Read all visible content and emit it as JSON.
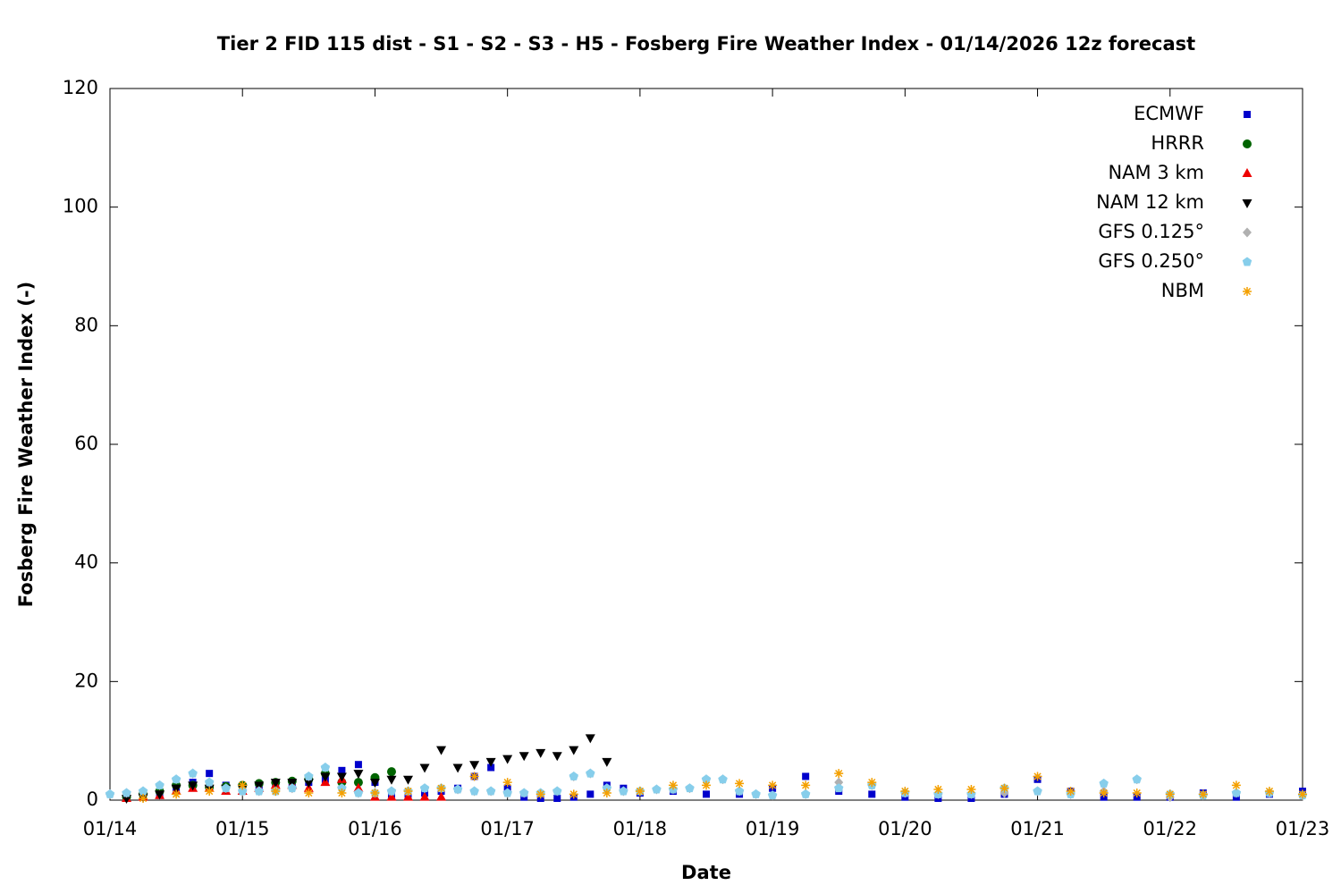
{
  "chart_data": {
    "type": "scatter",
    "title": "Tier 2 FID 115 dist - S1 - S2 - S3 - H5 - Fosberg Fire Weather Index - 01/14/2026 12z forecast",
    "xlabel": "Date",
    "ylabel": "Fosberg Fire Weather Index (-)",
    "xlim": [
      0,
      9
    ],
    "ylim": [
      0,
      120
    ],
    "xticks": [
      {
        "value": 0,
        "label": "01/14"
      },
      {
        "value": 1,
        "label": "01/15"
      },
      {
        "value": 2,
        "label": "01/16"
      },
      {
        "value": 3,
        "label": "01/17"
      },
      {
        "value": 4,
        "label": "01/18"
      },
      {
        "value": 5,
        "label": "01/19"
      },
      {
        "value": 6,
        "label": "01/20"
      },
      {
        "value": 7,
        "label": "01/21"
      },
      {
        "value": 8,
        "label": "01/22"
      },
      {
        "value": 9,
        "label": "01/23"
      }
    ],
    "yticks": [
      0,
      20,
      40,
      60,
      80,
      100,
      120
    ],
    "legend": "top-right",
    "series": [
      {
        "name": "ECMWF",
        "color": "#0000cc",
        "marker": "square",
        "x": [
          0.125,
          0.25,
          0.375,
          0.5,
          0.625,
          0.75,
          0.875,
          1.0,
          1.125,
          1.25,
          1.375,
          1.5,
          1.625,
          1.75,
          1.875,
          2.0,
          2.125,
          2.25,
          2.375,
          2.5,
          2.625,
          2.75,
          2.875,
          3.0,
          3.125,
          3.25,
          3.375,
          3.5,
          3.625,
          3.75,
          3.875,
          4.0,
          4.25,
          4.5,
          4.75,
          5.0,
          5.25,
          5.5,
          5.75,
          6.0,
          6.25,
          6.5,
          6.75,
          7.0,
          7.25,
          7.5,
          7.75,
          8.0,
          8.25,
          8.5,
          8.75,
          9.0
        ],
        "values": [
          0.3,
          0.5,
          0.8,
          1.5,
          3,
          4.5,
          2.5,
          2,
          1.8,
          2,
          2.5,
          3,
          3.5,
          5,
          6,
          3,
          1,
          1,
          1.2,
          1.5,
          2,
          4,
          5.5,
          2,
          0.5,
          0.3,
          0.3,
          0.5,
          1,
          2.5,
          2,
          1.2,
          1.5,
          1,
          1,
          2,
          4,
          1.5,
          1,
          0.5,
          0.3,
          0.3,
          1,
          3.5,
          1.5,
          0.5,
          0.5,
          0.5,
          1.2,
          0.5,
          1,
          1.5
        ]
      },
      {
        "name": "HRRR",
        "color": "#006400",
        "marker": "circle",
        "x": [
          0.125,
          0.25,
          0.375,
          0.5,
          0.625,
          0.75,
          0.875,
          1.0,
          1.125,
          1.25,
          1.375,
          1.5,
          1.625,
          1.75,
          1.875,
          2.0,
          2.125
        ],
        "values": [
          0.5,
          1,
          1.5,
          2.5,
          2.5,
          2.2,
          2.3,
          2.5,
          2.8,
          3,
          3.2,
          3.5,
          4.5,
          3,
          3,
          3.8,
          4.8
        ]
      },
      {
        "name": "NAM 3 km",
        "color": "#ee0000",
        "marker": "triangle-up",
        "x": [
          0.125,
          0.25,
          0.375,
          0.5,
          0.625,
          0.75,
          0.875,
          1.0,
          1.125,
          1.25,
          1.375,
          1.5,
          1.625,
          1.75,
          1.875,
          2.0,
          2.125,
          2.25,
          2.375,
          2.5
        ],
        "values": [
          0.3,
          0.5,
          0.8,
          1.5,
          2,
          2,
          1.5,
          1.5,
          2,
          2.5,
          2.5,
          2,
          3,
          3.5,
          2,
          0.5,
          0.5,
          0.5,
          0.5,
          0.5
        ]
      },
      {
        "name": "NAM 12 km",
        "color": "#000000",
        "marker": "triangle-down",
        "x": [
          0.125,
          0.25,
          0.375,
          0.5,
          0.625,
          0.75,
          0.875,
          1.0,
          1.125,
          1.25,
          1.375,
          1.5,
          1.625,
          1.75,
          1.875,
          2.0,
          2.125,
          2.25,
          2.375,
          2.5,
          2.625,
          2.75,
          2.875,
          3.0,
          3.125,
          3.25,
          3.375,
          3.5,
          3.625,
          3.75
        ],
        "values": [
          0.3,
          0.5,
          1,
          2,
          2.5,
          2,
          2,
          2,
          2.5,
          3,
          3,
          3,
          4,
          4,
          4.5,
          3,
          3.5,
          3.5,
          5.5,
          8.5,
          5.5,
          6,
          6.5,
          7,
          7.5,
          8,
          7.5,
          8.5,
          10.5,
          6.5
        ]
      },
      {
        "name": "GFS 0.125°",
        "color": "#b0b0b0",
        "marker": "diamond",
        "x": [
          0,
          0.125,
          0.25,
          0.375,
          0.5,
          0.625,
          0.75,
          0.875,
          1.0,
          1.125,
          1.25,
          1.375,
          1.5,
          1.625,
          1.75,
          1.875,
          2.0,
          2.125,
          2.25,
          2.375,
          2.5,
          2.625,
          2.75,
          2.875,
          3.0,
          3.125,
          3.25,
          3.375,
          3.5,
          3.625,
          3.75,
          3.875,
          4.0,
          4.125,
          4.25,
          4.375,
          4.5,
          4.625,
          4.75,
          4.875,
          5.0,
          5.25,
          5.5,
          5.75,
          6.0,
          6.25,
          6.5,
          6.75,
          7.0,
          7.25,
          7.5,
          7.75,
          8.0,
          8.25,
          8.5,
          8.75,
          9.0
        ],
        "values": [
          1,
          1.2,
          1.5,
          2.5,
          3.5,
          4.5,
          3,
          2,
          1.5,
          1.5,
          1.5,
          2,
          4,
          5.5,
          2,
          1.2,
          1.2,
          1.5,
          1.5,
          2,
          2,
          1.8,
          1.5,
          1.5,
          1.2,
          1.2,
          1.2,
          1.5,
          4,
          4.5,
          2,
          1.5,
          1.5,
          1.8,
          1.8,
          2,
          3.5,
          3.5,
          1.5,
          1,
          0.8,
          1,
          3,
          2.5,
          1.2,
          1,
          1,
          1.2,
          1.5,
          1,
          1.5,
          3.5,
          0.5,
          0.8,
          1.2,
          1.2,
          0.8
        ]
      },
      {
        "name": "GFS 0.250°",
        "color": "#87ceeb",
        "marker": "pentagon",
        "x": [
          0,
          0.125,
          0.25,
          0.375,
          0.5,
          0.625,
          0.75,
          0.875,
          1.0,
          1.125,
          1.25,
          1.375,
          1.5,
          1.625,
          1.75,
          1.875,
          2.0,
          2.125,
          2.25,
          2.375,
          2.5,
          2.625,
          2.75,
          2.875,
          3.0,
          3.125,
          3.25,
          3.375,
          3.5,
          3.625,
          3.75,
          3.875,
          4.0,
          4.125,
          4.25,
          4.375,
          4.5,
          4.625,
          4.75,
          4.875,
          5.0,
          5.25,
          5.5,
          5.75,
          6.0,
          6.25,
          6.5,
          6.75,
          7.0,
          7.25,
          7.5,
          7.75,
          8.0,
          8.25,
          8.5,
          8.75,
          9.0
        ],
        "values": [
          1,
          1.2,
          1.5,
          2.5,
          3.5,
          4.5,
          3,
          2,
          1.5,
          1.5,
          1.5,
          2,
          4,
          5.5,
          2,
          1.2,
          1.2,
          1.5,
          1.5,
          2,
          2,
          1.8,
          1.5,
          1.5,
          1.2,
          1.2,
          1.2,
          1.5,
          4,
          4.5,
          2,
          1.5,
          1.5,
          1.8,
          1.8,
          2,
          3.5,
          3.5,
          1.5,
          1,
          0.8,
          1,
          2,
          2.5,
          1.2,
          1,
          1,
          2,
          1.5,
          1,
          2.8,
          3.5,
          1,
          0.8,
          1.2,
          1.2,
          0.8
        ]
      },
      {
        "name": "NBM",
        "color": "#f4a000",
        "marker": "asterisk",
        "x": [
          0.25,
          0.5,
          0.75,
          1.0,
          1.25,
          1.5,
          1.75,
          2.0,
          2.25,
          2.5,
          2.75,
          3.0,
          3.25,
          3.5,
          3.75,
          4.0,
          4.25,
          4.5,
          4.75,
          5.0,
          5.25,
          5.5,
          5.75,
          6.0,
          6.25,
          6.5,
          6.75,
          7.0,
          7.25,
          7.5,
          7.75,
          8.0,
          8.25,
          8.5,
          8.75,
          9.0
        ],
        "values": [
          0.3,
          1,
          1.5,
          2.5,
          1.5,
          1.2,
          1.2,
          1.2,
          1.5,
          2,
          4,
          3,
          1,
          1,
          1.2,
          1.5,
          2.5,
          2.5,
          2.8,
          2.5,
          2.5,
          4.5,
          3,
          1.5,
          1.8,
          1.8,
          2,
          4,
          1.5,
          1.2,
          1.2,
          1,
          1,
          2.5,
          1.5,
          1
        ]
      }
    ]
  }
}
